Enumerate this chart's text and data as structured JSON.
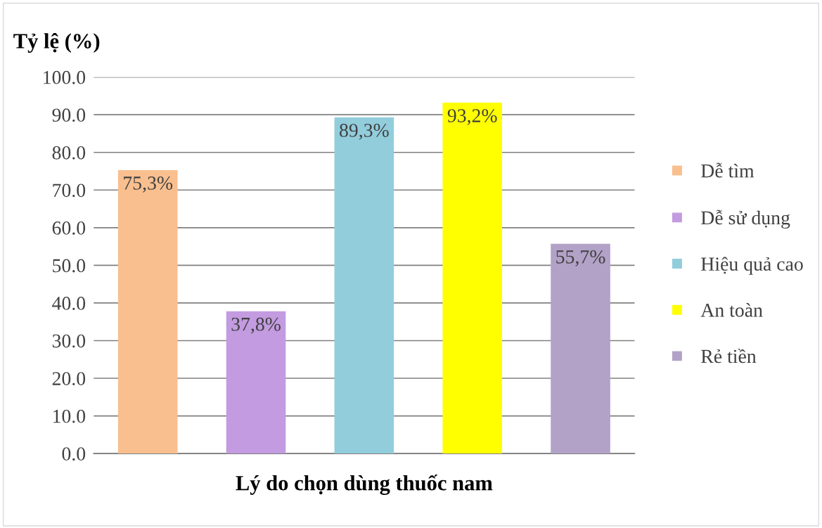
{
  "chart_data": {
    "type": "bar",
    "xlabel": "Lý do chọn dùng thuốc nam",
    "ylabel": "Tỷ lệ (%)",
    "categories": [
      null,
      null,
      null,
      null,
      null
    ],
    "series": [
      {
        "name": "Dễ tìm",
        "color": "#f9bf8f",
        "values": [
          75.3,
          null,
          null,
          null,
          null
        ],
        "value_labels": [
          "75,3%",
          null,
          null,
          null,
          null
        ]
      },
      {
        "name": "Dễ sử dụng",
        "color": "#c39be0",
        "values": [
          null,
          37.8,
          null,
          null,
          null
        ],
        "value_labels": [
          null,
          "37,8%",
          null,
          null,
          null
        ]
      },
      {
        "name": "Hiệu quả cao",
        "color": "#92cddc",
        "values": [
          null,
          null,
          89.3,
          null,
          null
        ],
        "value_labels": [
          null,
          null,
          "89,3%",
          null,
          null
        ]
      },
      {
        "name": "An toàn",
        "color": "#ffff00",
        "values": [
          null,
          null,
          null,
          93.2,
          null
        ],
        "value_labels": [
          null,
          null,
          null,
          "93,2%",
          null
        ]
      },
      {
        "name": "Rẻ tiền",
        "color": "#b2a2c7",
        "values": [
          null,
          null,
          null,
          null,
          55.7
        ],
        "value_labels": [
          null,
          null,
          null,
          null,
          "55,7%"
        ]
      }
    ],
    "ylim": [
      0,
      100
    ],
    "yticks": [
      {
        "value": 0,
        "label": "0.0"
      },
      {
        "value": 10,
        "label": "10.0"
      },
      {
        "value": 20,
        "label": "20.0"
      },
      {
        "value": 30,
        "label": "30.0"
      },
      {
        "value": 40,
        "label": "40.0"
      },
      {
        "value": 50,
        "label": "50.0"
      },
      {
        "value": 60,
        "label": "60.0"
      },
      {
        "value": 70,
        "label": "70.0"
      },
      {
        "value": 80,
        "label": "80.0"
      },
      {
        "value": 90,
        "label": "90.0"
      },
      {
        "value": 100,
        "label": "100.0"
      }
    ],
    "grid": "y",
    "legend": "right"
  }
}
